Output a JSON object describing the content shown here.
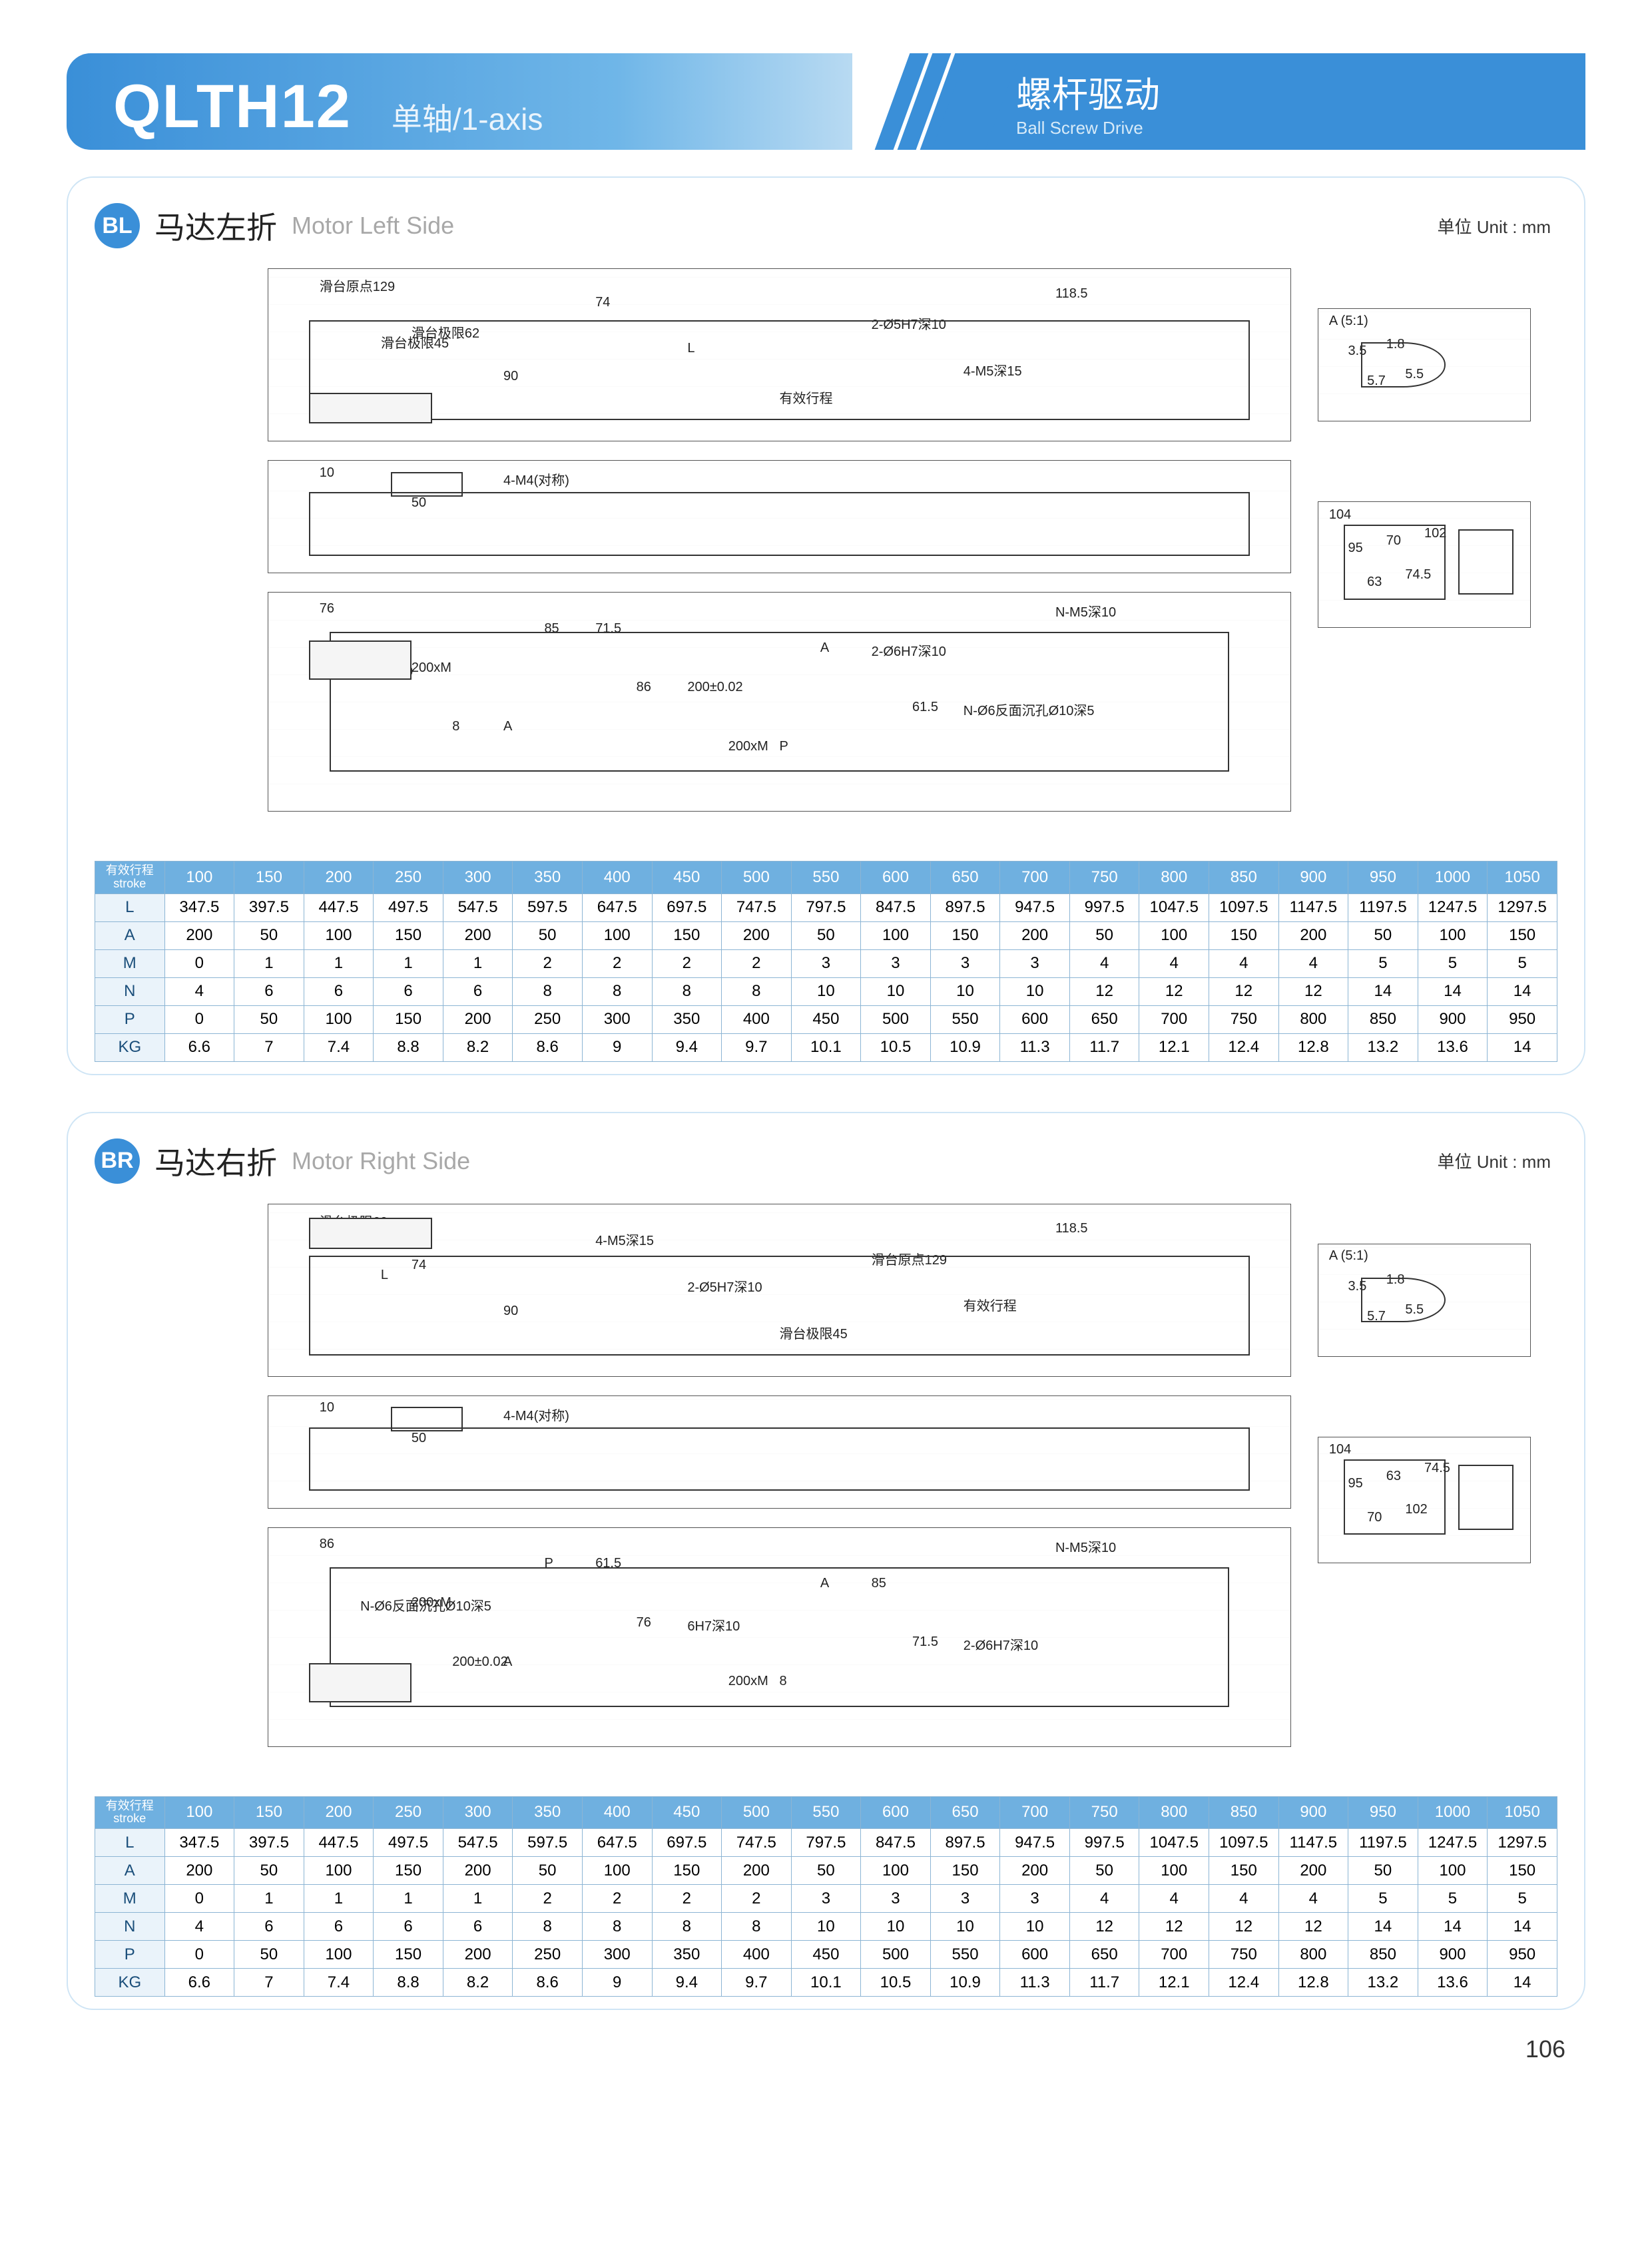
{
  "header": {
    "model": "QLTH12",
    "subtitle": "单轴/1-axis",
    "right_cn": "螺杆驱动",
    "right_en": "Ball Screw Drive"
  },
  "unit_label": "单位 Unit : mm",
  "page_number": "106",
  "sections": [
    {
      "badge": "BL",
      "title_cn": "马达左折",
      "title_en": "Motor Left Side",
      "drawing_labels": {
        "top": [
          "滑台原点129",
          "滑台极限62",
          "90",
          "74",
          "L",
          "有效行程",
          "2-Ø5H7深10",
          "4-M5深15",
          "118.5",
          "滑台极限45"
        ],
        "mid": [
          "10",
          "50",
          "4-M4(对称)"
        ],
        "bot": [
          "76",
          "200xM",
          "A",
          "71.5",
          "200±0.02",
          "P",
          "2-Ø6H7深10",
          "N-Ø6反面沉孔Ø10深5",
          "N-M5深10",
          "6H7深10",
          "8",
          "85",
          "86",
          "200xM",
          "A",
          "61.5"
        ],
        "side_a": [
          "A (5:1)",
          "3.5",
          "5.7",
          "1.8",
          "5.5"
        ],
        "side_b": [
          "104",
          "95",
          "63",
          "70",
          "74.5",
          "102"
        ]
      }
    },
    {
      "badge": "BR",
      "title_cn": "马达右折",
      "title_en": "Motor Right Side",
      "drawing_labels": {
        "top": [
          "滑台极限62",
          "74",
          "90",
          "4-M5深15",
          "2-Ø5H7深10",
          "滑台极限45",
          "滑台原点129",
          "有效行程",
          "118.5",
          "L"
        ],
        "mid": [
          "10",
          "50",
          "4-M4(对称)"
        ],
        "bot": [
          "86",
          "200xM",
          "A",
          "61.5",
          "6H7深10",
          "8",
          "85",
          "2-Ø6H7深10",
          "N-M5深10",
          "N-Ø6反面沉孔Ø10深5",
          "200±0.02",
          "P",
          "76",
          "200xM",
          "A",
          "71.5"
        ],
        "side_a": [
          "A (5:1)",
          "3.5",
          "5.7",
          "1.8",
          "5.5"
        ],
        "side_b": [
          "104",
          "95",
          "70",
          "63",
          "102",
          "74.5"
        ]
      }
    }
  ],
  "table": {
    "header_label_cn": "有效行程",
    "header_label_en": "stroke",
    "strokes": [
      "100",
      "150",
      "200",
      "250",
      "300",
      "350",
      "400",
      "450",
      "500",
      "550",
      "600",
      "650",
      "700",
      "750",
      "800",
      "850",
      "900",
      "950",
      "1000",
      "1050"
    ],
    "rows": [
      {
        "label": "L",
        "values": [
          "347.5",
          "397.5",
          "447.5",
          "497.5",
          "547.5",
          "597.5",
          "647.5",
          "697.5",
          "747.5",
          "797.5",
          "847.5",
          "897.5",
          "947.5",
          "997.5",
          "1047.5",
          "1097.5",
          "1147.5",
          "1197.5",
          "1247.5",
          "1297.5"
        ]
      },
      {
        "label": "A",
        "values": [
          "200",
          "50",
          "100",
          "150",
          "200",
          "50",
          "100",
          "150",
          "200",
          "50",
          "100",
          "150",
          "200",
          "50",
          "100",
          "150",
          "200",
          "50",
          "100",
          "150"
        ]
      },
      {
        "label": "M",
        "values": [
          "0",
          "1",
          "1",
          "1",
          "1",
          "2",
          "2",
          "2",
          "2",
          "3",
          "3",
          "3",
          "3",
          "4",
          "4",
          "4",
          "4",
          "5",
          "5",
          "5"
        ]
      },
      {
        "label": "N",
        "values": [
          "4",
          "6",
          "6",
          "6",
          "6",
          "8",
          "8",
          "8",
          "8",
          "10",
          "10",
          "10",
          "10",
          "12",
          "12",
          "12",
          "12",
          "14",
          "14",
          "14"
        ]
      },
      {
        "label": "P",
        "values": [
          "0",
          "50",
          "100",
          "150",
          "200",
          "250",
          "300",
          "350",
          "400",
          "450",
          "500",
          "550",
          "600",
          "650",
          "700",
          "750",
          "800",
          "850",
          "900",
          "950"
        ]
      },
      {
        "label": "KG",
        "values": [
          "6.6",
          "7",
          "7.4",
          "8.8",
          "8.2",
          "8.6",
          "9",
          "9.4",
          "9.7",
          "10.1",
          "10.5",
          "10.9",
          "11.3",
          "11.7",
          "12.1",
          "12.4",
          "12.8",
          "13.2",
          "13.6",
          "14"
        ]
      }
    ]
  },
  "colors": {
    "accent": "#3a8fd8",
    "accent_light": "#6fb0e0",
    "border": "#8cb5d4",
    "row_header_bg": "#eaf3fa",
    "card_border": "#cfe5f5"
  }
}
